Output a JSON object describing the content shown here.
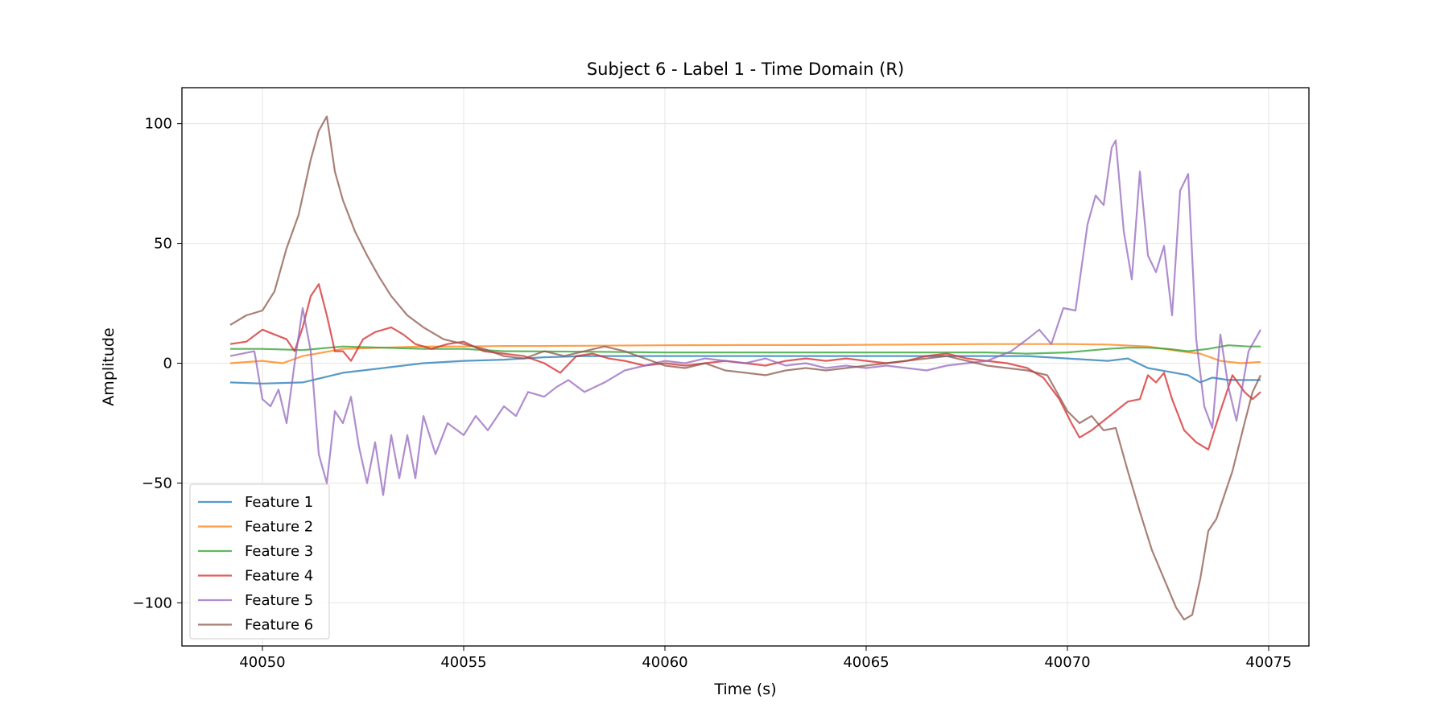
{
  "chart_data": {
    "type": "line",
    "title": "Subject 6 - Label 1 - Time Domain (R)",
    "xlabel": "Time (s)",
    "ylabel": "Amplitude",
    "xlim": [
      40048.0,
      40076.0
    ],
    "ylim": [
      -118,
      115
    ],
    "x_ticks": [
      40050,
      40055,
      40060,
      40065,
      40070,
      40075
    ],
    "y_ticks": [
      -100,
      -50,
      0,
      50,
      100
    ],
    "x_tick_labels": [
      "40050",
      "40055",
      "40060",
      "40065",
      "40070",
      "40075"
    ],
    "y_tick_labels": [
      "−100",
      "−50",
      "0",
      "50",
      "100"
    ],
    "grid": true,
    "legend_position": "lower-left",
    "series": [
      {
        "name": "Feature 1",
        "color": "#1f77b4",
        "points": [
          [
            40049.2,
            -8
          ],
          [
            40050,
            -8.5
          ],
          [
            40051,
            -8
          ],
          [
            40052,
            -4
          ],
          [
            40053,
            -2
          ],
          [
            40054,
            0
          ],
          [
            40055,
            1
          ],
          [
            40056,
            1.5
          ],
          [
            40057,
            2.5
          ],
          [
            40058,
            3
          ],
          [
            40059,
            3
          ],
          [
            40060,
            3
          ],
          [
            40062,
            3
          ],
          [
            40064,
            3
          ],
          [
            40066,
            3
          ],
          [
            40068,
            3
          ],
          [
            40069,
            3
          ],
          [
            40070,
            2
          ],
          [
            40071,
            1
          ],
          [
            40071.5,
            2
          ],
          [
            40072,
            -2
          ],
          [
            40073,
            -5
          ],
          [
            40073.3,
            -8
          ],
          [
            40073.6,
            -6
          ],
          [
            40074,
            -7
          ],
          [
            40074.8,
            -7
          ]
        ]
      },
      {
        "name": "Feature 2",
        "color": "#ff7f0e",
        "points": [
          [
            40049.2,
            0
          ],
          [
            40050,
            1
          ],
          [
            40050.5,
            0
          ],
          [
            40051,
            3
          ],
          [
            40052,
            6
          ],
          [
            40053,
            6.5
          ],
          [
            40054,
            7
          ],
          [
            40055,
            7
          ],
          [
            40056,
            7.2
          ],
          [
            40057,
            7.2
          ],
          [
            40058,
            7.3
          ],
          [
            40060,
            7.5
          ],
          [
            40062,
            7.6
          ],
          [
            40064,
            7.6
          ],
          [
            40066,
            7.8
          ],
          [
            40068,
            8
          ],
          [
            40070,
            8
          ],
          [
            40071,
            7.8
          ],
          [
            40072,
            7
          ],
          [
            40072.8,
            5
          ],
          [
            40073.3,
            4
          ],
          [
            40073.8,
            1
          ],
          [
            40074.3,
            0
          ],
          [
            40074.8,
            0.5
          ]
        ]
      },
      {
        "name": "Feature 3",
        "color": "#2ca02c",
        "points": [
          [
            40049.2,
            6
          ],
          [
            40050,
            6
          ],
          [
            40051,
            5.5
          ],
          [
            40052,
            7
          ],
          [
            40053,
            6.5
          ],
          [
            40054,
            6
          ],
          [
            40055,
            6
          ],
          [
            40056,
            5
          ],
          [
            40058,
            4.8
          ],
          [
            40060,
            4.5
          ],
          [
            40062,
            4.5
          ],
          [
            40064,
            4.5
          ],
          [
            40066,
            4.5
          ],
          [
            40068,
            4.5
          ],
          [
            40069,
            4
          ],
          [
            40070,
            4.5
          ],
          [
            40071,
            6
          ],
          [
            40071.5,
            6.5
          ],
          [
            40072,
            6.5
          ],
          [
            40072.5,
            6
          ],
          [
            40073,
            5
          ],
          [
            40073.5,
            6
          ],
          [
            40074,
            7.5
          ],
          [
            40074.5,
            7
          ],
          [
            40074.8,
            7
          ]
        ]
      },
      {
        "name": "Feature 4",
        "color": "#d62728",
        "points": [
          [
            40049.2,
            8
          ],
          [
            40049.6,
            9
          ],
          [
            40050,
            14
          ],
          [
            40050.3,
            12
          ],
          [
            40050.6,
            10
          ],
          [
            40050.8,
            5
          ],
          [
            40051,
            15
          ],
          [
            40051.2,
            28
          ],
          [
            40051.4,
            33
          ],
          [
            40051.6,
            20
          ],
          [
            40051.8,
            5
          ],
          [
            40052,
            5
          ],
          [
            40052.2,
            1
          ],
          [
            40052.5,
            10
          ],
          [
            40052.8,
            13
          ],
          [
            40053.2,
            15
          ],
          [
            40053.5,
            12
          ],
          [
            40053.8,
            8
          ],
          [
            40054.2,
            6
          ],
          [
            40054.6,
            8
          ],
          [
            40055,
            9
          ],
          [
            40055.5,
            5
          ],
          [
            40056,
            4
          ],
          [
            40056.5,
            3
          ],
          [
            40057,
            0
          ],
          [
            40057.4,
            -4
          ],
          [
            40057.8,
            3
          ],
          [
            40058.2,
            4
          ],
          [
            40058.6,
            2
          ],
          [
            40059,
            1
          ],
          [
            40059.5,
            -1
          ],
          [
            40060,
            0
          ],
          [
            40060.5,
            -1
          ],
          [
            40061,
            0
          ],
          [
            40061.5,
            1
          ],
          [
            40062,
            0
          ],
          [
            40062.5,
            -1
          ],
          [
            40063,
            1
          ],
          [
            40063.5,
            2
          ],
          [
            40064,
            1
          ],
          [
            40064.5,
            2
          ],
          [
            40065,
            1
          ],
          [
            40065.5,
            0
          ],
          [
            40066,
            1
          ],
          [
            40066.5,
            3
          ],
          [
            40067,
            4
          ],
          [
            40067.5,
            2
          ],
          [
            40068,
            1
          ],
          [
            40068.5,
            0
          ],
          [
            40069,
            -2
          ],
          [
            40069.4,
            -6
          ],
          [
            40069.8,
            -15
          ],
          [
            40070.1,
            -25
          ],
          [
            40070.3,
            -31
          ],
          [
            40070.6,
            -28
          ],
          [
            40070.9,
            -24
          ],
          [
            40071.2,
            -20
          ],
          [
            40071.5,
            -16
          ],
          [
            40071.8,
            -15
          ],
          [
            40072,
            -5
          ],
          [
            40072.2,
            -8
          ],
          [
            40072.4,
            -4
          ],
          [
            40072.6,
            -15
          ],
          [
            40072.9,
            -28
          ],
          [
            40073.2,
            -33
          ],
          [
            40073.5,
            -36
          ],
          [
            40073.8,
            -20
          ],
          [
            40074.1,
            -5
          ],
          [
            40074.4,
            -12
          ],
          [
            40074.6,
            -15
          ],
          [
            40074.8,
            -12
          ]
        ]
      },
      {
        "name": "Feature 5",
        "color": "#9467bd",
        "points": [
          [
            40049.2,
            3
          ],
          [
            40049.5,
            4
          ],
          [
            40049.8,
            5
          ],
          [
            40050,
            -15
          ],
          [
            40050.2,
            -18
          ],
          [
            40050.4,
            -11
          ],
          [
            40050.6,
            -25
          ],
          [
            40050.8,
            0
          ],
          [
            40051,
            23
          ],
          [
            40051.2,
            5
          ],
          [
            40051.4,
            -38
          ],
          [
            40051.6,
            -50
          ],
          [
            40051.8,
            -20
          ],
          [
            40052,
            -25
          ],
          [
            40052.2,
            -14
          ],
          [
            40052.4,
            -35
          ],
          [
            40052.6,
            -50
          ],
          [
            40052.8,
            -33
          ],
          [
            40053,
            -55
          ],
          [
            40053.2,
            -30
          ],
          [
            40053.4,
            -48
          ],
          [
            40053.6,
            -30
          ],
          [
            40053.8,
            -48
          ],
          [
            40054,
            -22
          ],
          [
            40054.3,
            -38
          ],
          [
            40054.6,
            -25
          ],
          [
            40055,
            -30
          ],
          [
            40055.3,
            -22
          ],
          [
            40055.6,
            -28
          ],
          [
            40056,
            -18
          ],
          [
            40056.3,
            -22
          ],
          [
            40056.6,
            -12
          ],
          [
            40057,
            -14
          ],
          [
            40057.3,
            -10
          ],
          [
            40057.6,
            -7
          ],
          [
            40058,
            -12
          ],
          [
            40058.5,
            -8
          ],
          [
            40059,
            -3
          ],
          [
            40059.5,
            -1
          ],
          [
            40060,
            1
          ],
          [
            40060.5,
            0
          ],
          [
            40061,
            2
          ],
          [
            40061.5,
            1
          ],
          [
            40062,
            0
          ],
          [
            40062.5,
            2
          ],
          [
            40063,
            -1
          ],
          [
            40063.5,
            0
          ],
          [
            40064,
            -2
          ],
          [
            40064.5,
            -1
          ],
          [
            40065,
            -2
          ],
          [
            40065.5,
            -1
          ],
          [
            40066,
            -2
          ],
          [
            40066.5,
            -3
          ],
          [
            40067,
            -1
          ],
          [
            40067.5,
            0
          ],
          [
            40068,
            1
          ],
          [
            40068.3,
            3
          ],
          [
            40068.6,
            5
          ],
          [
            40069,
            10
          ],
          [
            40069.3,
            14
          ],
          [
            40069.6,
            8
          ],
          [
            40069.9,
            23
          ],
          [
            40070.2,
            22
          ],
          [
            40070.5,
            58
          ],
          [
            40070.7,
            70
          ],
          [
            40070.9,
            66
          ],
          [
            40071.1,
            90
          ],
          [
            40071.2,
            93
          ],
          [
            40071.4,
            55
          ],
          [
            40071.6,
            35
          ],
          [
            40071.8,
            80
          ],
          [
            40072,
            45
          ],
          [
            40072.2,
            38
          ],
          [
            40072.4,
            49
          ],
          [
            40072.6,
            20
          ],
          [
            40072.8,
            72
          ],
          [
            40073,
            79
          ],
          [
            40073.2,
            10
          ],
          [
            40073.4,
            -18
          ],
          [
            40073.6,
            -27
          ],
          [
            40073.8,
            12
          ],
          [
            40074,
            -10
          ],
          [
            40074.2,
            -24
          ],
          [
            40074.5,
            5
          ],
          [
            40074.8,
            14
          ]
        ]
      },
      {
        "name": "Feature 6",
        "color": "#8c564b",
        "points": [
          [
            40049.2,
            16
          ],
          [
            40049.6,
            20
          ],
          [
            40050,
            22
          ],
          [
            40050.3,
            30
          ],
          [
            40050.6,
            48
          ],
          [
            40050.9,
            62
          ],
          [
            40051.2,
            85
          ],
          [
            40051.4,
            97
          ],
          [
            40051.6,
            103
          ],
          [
            40051.8,
            80
          ],
          [
            40052,
            68
          ],
          [
            40052.3,
            55
          ],
          [
            40052.6,
            45
          ],
          [
            40052.9,
            36
          ],
          [
            40053.2,
            28
          ],
          [
            40053.6,
            20
          ],
          [
            40054,
            15
          ],
          [
            40054.5,
            10
          ],
          [
            40055,
            8
          ],
          [
            40055.5,
            6
          ],
          [
            40056,
            3
          ],
          [
            40056.5,
            2
          ],
          [
            40057,
            5
          ],
          [
            40057.5,
            3
          ],
          [
            40058,
            5
          ],
          [
            40058.5,
            7
          ],
          [
            40059,
            5
          ],
          [
            40059.5,
            2
          ],
          [
            40060,
            -1
          ],
          [
            40060.5,
            -2
          ],
          [
            40061,
            0
          ],
          [
            40061.5,
            -3
          ],
          [
            40062,
            -4
          ],
          [
            40062.5,
            -5
          ],
          [
            40063,
            -3
          ],
          [
            40063.5,
            -2
          ],
          [
            40064,
            -3
          ],
          [
            40064.5,
            -2
          ],
          [
            40065,
            -1
          ],
          [
            40065.5,
            0
          ],
          [
            40066,
            1
          ],
          [
            40066.5,
            2
          ],
          [
            40067,
            3
          ],
          [
            40067.5,
            1
          ],
          [
            40068,
            -1
          ],
          [
            40068.5,
            -2
          ],
          [
            40069,
            -3
          ],
          [
            40069.5,
            -5
          ],
          [
            40070,
            -20
          ],
          [
            40070.3,
            -25
          ],
          [
            40070.6,
            -22
          ],
          [
            40070.9,
            -28
          ],
          [
            40071.2,
            -27
          ],
          [
            40071.5,
            -45
          ],
          [
            40071.8,
            -62
          ],
          [
            40072.1,
            -78
          ],
          [
            40072.4,
            -90
          ],
          [
            40072.7,
            -102
          ],
          [
            40072.9,
            -107
          ],
          [
            40073.1,
            -105
          ],
          [
            40073.3,
            -90
          ],
          [
            40073.5,
            -70
          ],
          [
            40073.7,
            -65
          ],
          [
            40073.9,
            -55
          ],
          [
            40074.1,
            -45
          ],
          [
            40074.4,
            -25
          ],
          [
            40074.6,
            -12
          ],
          [
            40074.8,
            -5
          ]
        ]
      }
    ]
  }
}
